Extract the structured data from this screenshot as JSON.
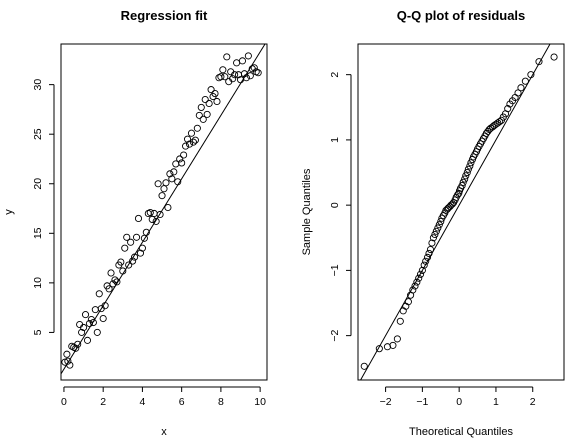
{
  "chart_data": [
    {
      "type": "scatter",
      "title": "Regression fit",
      "xlabel": "x",
      "ylabel": "y",
      "xlim": [
        -0.15,
        10.35
      ],
      "ylim": [
        0.2,
        34.1
      ],
      "xticks": [
        0,
        2,
        4,
        6,
        8,
        10
      ],
      "yticks": [
        5,
        10,
        15,
        20,
        25,
        30
      ],
      "grid": false,
      "legend": "none",
      "line": {
        "intercept": 1.3,
        "slope": 3.2
      },
      "x": [
        0.05,
        0.15,
        0.2,
        0.3,
        0.4,
        0.5,
        0.6,
        0.7,
        0.8,
        0.9,
        1.0,
        1.1,
        1.2,
        1.3,
        1.4,
        1.5,
        1.6,
        1.7,
        1.8,
        1.9,
        2.0,
        2.1,
        2.2,
        2.3,
        2.4,
        2.5,
        2.6,
        2.7,
        2.8,
        2.9,
        3.0,
        3.1,
        3.2,
        3.3,
        3.4,
        3.5,
        3.6,
        3.7,
        3.8,
        3.9,
        4.0,
        4.1,
        4.2,
        4.3,
        4.4,
        4.5,
        4.6,
        4.7,
        4.8,
        4.9,
        5.0,
        5.1,
        5.2,
        5.3,
        5.4,
        5.5,
        5.6,
        5.7,
        5.8,
        5.9,
        6.0,
        6.1,
        6.2,
        6.3,
        6.4,
        6.5,
        6.6,
        6.7,
        6.8,
        6.9,
        7.0,
        7.1,
        7.2,
        7.3,
        7.4,
        7.5,
        7.6,
        7.7,
        7.8,
        7.9,
        8.0,
        8.1,
        8.2,
        8.3,
        8.4,
        8.5,
        8.6,
        8.7,
        8.8,
        8.9,
        9.0,
        9.1,
        9.2,
        9.3,
        9.4,
        9.5,
        9.6,
        9.7,
        9.8,
        9.9
      ],
      "y": [
        2.0,
        2.8,
        2.1,
        1.7,
        3.6,
        3.5,
        3.4,
        3.8,
        5.8,
        5.0,
        5.5,
        6.8,
        4.2,
        5.9,
        6.3,
        6.0,
        7.3,
        5.0,
        8.9,
        7.4,
        6.4,
        7.7,
        9.7,
        9.4,
        11.0,
        9.9,
        10.3,
        10.1,
        11.8,
        12.1,
        11.2,
        13.5,
        14.6,
        11.8,
        14.1,
        12.2,
        12.6,
        14.6,
        16.5,
        13.0,
        13.5,
        14.5,
        15.1,
        17.0,
        17.1,
        16.4,
        17.0,
        16.2,
        20.0,
        16.9,
        18.8,
        19.5,
        20.1,
        17.6,
        21.0,
        20.5,
        21.2,
        22.0,
        20.2,
        22.5,
        22.1,
        22.9,
        23.8,
        24.5,
        24.0,
        25.1,
        24.2,
        24.4,
        25.6,
        26.9,
        27.7,
        26.5,
        28.5,
        27.0,
        28.1,
        29.5,
        28.8,
        29.1,
        28.3,
        30.7,
        30.8,
        31.5,
        30.8,
        32.8,
        30.3,
        31.3,
        30.6,
        31.0,
        32.2,
        31.0,
        30.5,
        32.4,
        31.1,
        30.7,
        32.9,
        30.9,
        31.6,
        31.7,
        31.3,
        31.2
      ]
    },
    {
      "type": "scatter",
      "title": "Q-Q plot of residuals",
      "xlabel": "Theoretical Quantiles",
      "ylabel": "Sample Quantiles",
      "xlim": [
        -2.75,
        2.85
      ],
      "ylim": [
        -2.68,
        2.47
      ],
      "xticks": [
        -2,
        -1,
        0,
        1,
        2
      ],
      "yticks": [
        -2,
        -1,
        0,
        1,
        2
      ],
      "grid": false,
      "legend": "none",
      "line": {
        "intercept": 0.0,
        "slope": 1.0
      },
      "x": [
        -2.58,
        -2.17,
        -1.95,
        -1.8,
        -1.68,
        -1.6,
        -1.52,
        -1.45,
        -1.38,
        -1.32,
        -1.26,
        -1.2,
        -1.15,
        -1.1,
        -1.05,
        -1.0,
        -0.95,
        -0.91,
        -0.86,
        -0.82,
        -0.78,
        -0.74,
        -0.7,
        -0.66,
        -0.62,
        -0.58,
        -0.54,
        -0.5,
        -0.47,
        -0.43,
        -0.39,
        -0.36,
        -0.32,
        -0.29,
        -0.25,
        -0.22,
        -0.18,
        -0.15,
        -0.11,
        -0.08,
        -0.04,
        -0.01,
        0.01,
        0.04,
        0.08,
        0.11,
        0.15,
        0.18,
        0.22,
        0.25,
        0.29,
        0.32,
        0.36,
        0.39,
        0.43,
        0.47,
        0.5,
        0.54,
        0.58,
        0.62,
        0.66,
        0.7,
        0.74,
        0.78,
        0.82,
        0.86,
        0.91,
        0.95,
        1.0,
        1.05,
        1.1,
        1.15,
        1.2,
        1.26,
        1.32,
        1.38,
        1.45,
        1.52,
        1.6,
        1.68,
        1.8,
        1.95,
        2.17,
        2.58
      ],
      "y": [
        -2.47,
        -2.2,
        -2.17,
        -2.15,
        -2.05,
        -1.78,
        -1.62,
        -1.55,
        -1.48,
        -1.38,
        -1.3,
        -1.24,
        -1.18,
        -1.12,
        -1.06,
        -1.0,
        -0.92,
        -0.86,
        -0.8,
        -0.74,
        -0.68,
        -0.58,
        -0.5,
        -0.45,
        -0.4,
        -0.35,
        -0.3,
        -0.25,
        -0.2,
        -0.16,
        -0.12,
        -0.08,
        -0.06,
        -0.04,
        -0.02,
        0.0,
        0.02,
        0.04,
        0.08,
        0.12,
        0.16,
        0.18,
        0.22,
        0.26,
        0.3,
        0.35,
        0.4,
        0.45,
        0.5,
        0.55,
        0.6,
        0.65,
        0.7,
        0.74,
        0.78,
        0.82,
        0.86,
        0.9,
        0.94,
        0.98,
        1.02,
        1.06,
        1.1,
        1.13,
        1.16,
        1.18,
        1.2,
        1.22,
        1.24,
        1.26,
        1.28,
        1.3,
        1.35,
        1.4,
        1.48,
        1.55,
        1.6,
        1.65,
        1.72,
        1.8,
        1.9,
        2.0,
        2.2,
        2.27
      ]
    }
  ]
}
